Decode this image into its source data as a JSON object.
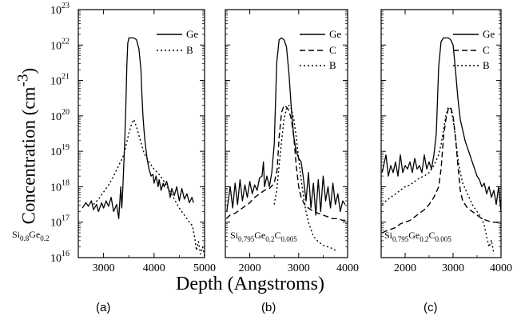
{
  "figure": {
    "ylabel_text": "Concentration (cm",
    "ylabel_sup": "-3",
    "ylabel_close": ")",
    "xlabel": "Depth (Angstroms)"
  },
  "chart_data": [
    {
      "type": "line",
      "panel_label": "(a)",
      "yscale": "log",
      "ylim": [
        1e+16,
        1e+23
      ],
      "xlim": [
        2500,
        5000
      ],
      "xticks": [
        3000,
        4000,
        5000
      ],
      "ytick_labels": [
        {
          "base": "10",
          "exp": "23"
        },
        {
          "base": "10",
          "exp": "22"
        },
        {
          "base": "10",
          "exp": "21"
        },
        {
          "base": "10",
          "exp": "20"
        },
        {
          "base": "10",
          "exp": "19"
        },
        {
          "base": "10",
          "exp": "18"
        },
        {
          "base": "10",
          "exp": "17"
        },
        {
          "base": "10",
          "exp": "16"
        }
      ],
      "annotation": [
        {
          "t": "Si"
        },
        {
          "t": "0.8",
          "sub": true
        },
        {
          "t": "Ge"
        },
        {
          "t": "0.2",
          "sub": true
        }
      ],
      "series": [
        {
          "name": "Ge",
          "style": "solid",
          "x": [
            2580,
            2650,
            2700,
            2760,
            2800,
            2860,
            2900,
            2960,
            3000,
            3050,
            3100,
            3150,
            3200,
            3260,
            3300,
            3340,
            3360,
            3380,
            3400,
            3420,
            3440,
            3460,
            3480,
            3500,
            3540,
            3600,
            3650,
            3700,
            3740,
            3760,
            3780,
            3800,
            3820,
            3840,
            3860,
            3900,
            3940,
            3980,
            4000,
            4040,
            4080,
            4100,
            4140,
            4180,
            4200,
            4250,
            4300,
            4320,
            4350,
            4400,
            4450,
            4500,
            4550,
            4600,
            4650,
            4700,
            4750,
            4780
          ],
          "y": [
            17.4,
            17.55,
            17.45,
            17.6,
            17.35,
            17.5,
            17.3,
            17.55,
            17.4,
            17.6,
            17.45,
            17.7,
            17.3,
            17.5,
            17.1,
            18.0,
            17.4,
            17.9,
            18.6,
            19.3,
            20.2,
            21.4,
            22.05,
            22.2,
            22.2,
            22.2,
            22.15,
            21.9,
            21.3,
            20.6,
            20.0,
            19.6,
            19.3,
            19.05,
            18.8,
            18.5,
            18.3,
            18.35,
            18.1,
            18.3,
            18.0,
            18.2,
            17.9,
            18.1,
            18.0,
            18.15,
            17.85,
            17.7,
            17.95,
            17.75,
            18.0,
            17.6,
            17.95,
            17.65,
            17.8,
            17.55,
            17.7,
            17.55
          ]
        },
        {
          "name": "B",
          "style": "dotted",
          "x": [
            2800,
            2900,
            3000,
            3100,
            3200,
            3300,
            3400,
            3500,
            3550,
            3600,
            3650,
            3700,
            3750,
            3800,
            3900,
            4000,
            4100,
            4200,
            4300,
            4400,
            4500,
            4600,
            4700,
            4760,
            4800,
            4840,
            4880,
            4920,
            4960,
            5000
          ],
          "y": [
            17.5,
            17.65,
            17.85,
            18.05,
            18.3,
            18.6,
            18.9,
            19.5,
            19.75,
            19.9,
            19.7,
            19.45,
            19.2,
            18.95,
            18.7,
            18.5,
            18.35,
            18.15,
            17.9,
            17.65,
            17.4,
            17.2,
            17.0,
            16.9,
            16.6,
            16.2,
            16.45,
            16.1,
            16.3,
            16.05
          ]
        }
      ]
    },
    {
      "type": "line",
      "panel_label": "(b)",
      "yscale": "log",
      "ylim": [
        1e+16,
        1e+23
      ],
      "xlim": [
        1500,
        4000
      ],
      "xticks": [
        2000,
        3000,
        4000
      ],
      "annotation": [
        {
          "t": "Si"
        },
        {
          "t": "0.795",
          "sub": true
        },
        {
          "t": "Ge"
        },
        {
          "t": "0.2",
          "sub": true
        },
        {
          "t": "C"
        },
        {
          "t": "0.005",
          "sub": true
        }
      ],
      "series": [
        {
          "name": "Ge",
          "style": "solid",
          "x": [
            1530,
            1600,
            1650,
            1700,
            1750,
            1800,
            1850,
            1900,
            1950,
            2000,
            2050,
            2100,
            2150,
            2200,
            2250,
            2280,
            2300,
            2350,
            2400,
            2450,
            2500,
            2550,
            2600,
            2650,
            2700,
            2750,
            2800,
            2850,
            2900,
            2950,
            3000,
            3050,
            3100,
            3150,
            3200,
            3250,
            3300,
            3350,
            3400,
            3450,
            3500,
            3550,
            3600,
            3650,
            3700,
            3750,
            3800,
            3850,
            3900,
            3950
          ],
          "y": [
            17.3,
            18.0,
            17.4,
            18.1,
            17.5,
            18.2,
            17.6,
            18.05,
            17.7,
            18.15,
            17.8,
            18.05,
            17.9,
            18.25,
            18.3,
            18.7,
            18.0,
            18.3,
            18.0,
            18.4,
            19.2,
            21.5,
            22.15,
            22.2,
            22.15,
            21.95,
            21.2,
            20.2,
            19.4,
            19.0,
            18.8,
            18.7,
            18.2,
            17.6,
            18.4,
            17.4,
            18.1,
            17.2,
            18.2,
            17.3,
            18.3,
            17.6,
            18.0,
            17.4,
            18.1,
            17.5,
            17.8,
            17.3,
            17.6,
            17.5
          ]
        },
        {
          "name": "C",
          "style": "dashed",
          "x": [
            1520,
            1600,
            1700,
            1800,
            1900,
            2000,
            2100,
            2200,
            2300,
            2400,
            2500,
            2560,
            2600,
            2650,
            2700,
            2750,
            2800,
            2850,
            2900,
            2950,
            3000,
            3050,
            3100,
            3150,
            3200,
            3300,
            3400,
            3500,
            3600,
            3700,
            3800,
            3900,
            4000
          ],
          "y": [
            17.1,
            17.2,
            17.25,
            17.35,
            17.45,
            17.55,
            17.7,
            17.8,
            17.9,
            17.95,
            18.1,
            18.5,
            19.4,
            20.1,
            20.3,
            20.25,
            20.15,
            19.9,
            19.4,
            18.6,
            18.0,
            17.7,
            17.55,
            17.45,
            17.4,
            17.3,
            17.25,
            17.2,
            17.15,
            17.1,
            17.1,
            17.05,
            17.05
          ]
        },
        {
          "name": "B",
          "style": "dotted",
          "x": [
            2500,
            2550,
            2600,
            2650,
            2700,
            2750,
            2800,
            2850,
            2900,
            2950,
            3000,
            3050,
            3100,
            3150,
            3200,
            3250,
            3300,
            3400,
            3500,
            3600,
            3700,
            3750
          ],
          "y": [
            17.5,
            17.9,
            18.6,
            19.3,
            19.9,
            20.2,
            20.3,
            20.2,
            19.9,
            19.4,
            18.8,
            18.2,
            17.7,
            17.3,
            17.0,
            16.8,
            16.6,
            16.45,
            16.35,
            16.3,
            16.25,
            16.2
          ]
        }
      ]
    },
    {
      "type": "line",
      "panel_label": "(c)",
      "yscale": "log",
      "ylim": [
        1e+16,
        1e+23
      ],
      "xlim": [
        1500,
        4000
      ],
      "xticks": [
        2000,
        3000,
        4000
      ],
      "annotation": [
        {
          "t": "Si"
        },
        {
          "t": "0.795",
          "sub": true
        },
        {
          "t": "Ge"
        },
        {
          "t": "0.2",
          "sub": true
        },
        {
          "t": "C"
        },
        {
          "t": "0.005",
          "sub": true
        }
      ],
      "series": [
        {
          "name": "Ge",
          "style": "solid",
          "x": [
            1520,
            1600,
            1650,
            1700,
            1750,
            1800,
            1850,
            1900,
            1950,
            2000,
            2050,
            2100,
            2150,
            2200,
            2250,
            2300,
            2350,
            2400,
            2450,
            2500,
            2550,
            2600,
            2650,
            2700,
            2750,
            2800,
            2850,
            2900,
            2950,
            3000,
            3050,
            3100,
            3150,
            3200,
            3250,
            3300,
            3350,
            3400,
            3450,
            3500,
            3550,
            3600,
            3650,
            3700,
            3750,
            3800,
            3850,
            3900,
            3950,
            4000
          ],
          "y": [
            18.4,
            18.9,
            18.3,
            18.6,
            18.4,
            18.7,
            18.3,
            18.9,
            18.4,
            18.6,
            18.5,
            18.7,
            18.4,
            18.8,
            18.5,
            18.6,
            18.4,
            18.9,
            18.5,
            18.7,
            18.5,
            18.9,
            19.5,
            21.4,
            22.1,
            22.2,
            22.2,
            22.2,
            22.15,
            22.0,
            21.3,
            20.5,
            19.9,
            19.6,
            19.3,
            19.1,
            18.9,
            18.7,
            18.5,
            18.3,
            18.2,
            18.0,
            18.1,
            17.8,
            18.0,
            17.7,
            17.9,
            17.5,
            18.0,
            17.3
          ]
        },
        {
          "name": "C",
          "style": "dashed",
          "x": [
            1520,
            1600,
            1700,
            1800,
            1900,
            2000,
            2100,
            2200,
            2300,
            2400,
            2500,
            2600,
            2700,
            2750,
            2800,
            2850,
            2900,
            2950,
            3000,
            3050,
            3100,
            3150,
            3200,
            3300,
            3400,
            3500,
            3600,
            3700,
            3800,
            3900,
            4000
          ],
          "y": [
            16.7,
            16.75,
            16.8,
            16.85,
            16.95,
            17.0,
            17.05,
            17.15,
            17.25,
            17.35,
            17.5,
            17.7,
            18.0,
            18.5,
            19.4,
            19.9,
            20.2,
            20.25,
            20.0,
            19.4,
            18.6,
            17.9,
            17.6,
            17.4,
            17.3,
            17.2,
            17.1,
            17.05,
            17.0,
            17.0,
            16.95
          ]
        },
        {
          "name": "B",
          "style": "dotted",
          "x": [
            1520,
            1600,
            1700,
            1800,
            1900,
            2000,
            2100,
            2200,
            2300,
            2400,
            2500,
            2600,
            2700,
            2750,
            2800,
            2850,
            2900,
            2950,
            3000,
            3050,
            3100,
            3150,
            3200,
            3300,
            3400,
            3500,
            3600,
            3650,
            3700,
            3750,
            3800,
            3850
          ],
          "y": [
            17.5,
            17.6,
            17.7,
            17.8,
            17.9,
            18.0,
            18.05,
            18.15,
            18.25,
            18.3,
            18.4,
            18.6,
            18.9,
            19.2,
            19.6,
            20.0,
            20.25,
            20.2,
            19.9,
            19.4,
            18.8,
            18.4,
            18.1,
            17.8,
            17.5,
            17.3,
            17.1,
            16.9,
            16.6,
            16.3,
            16.5,
            16.1
          ]
        }
      ]
    }
  ]
}
